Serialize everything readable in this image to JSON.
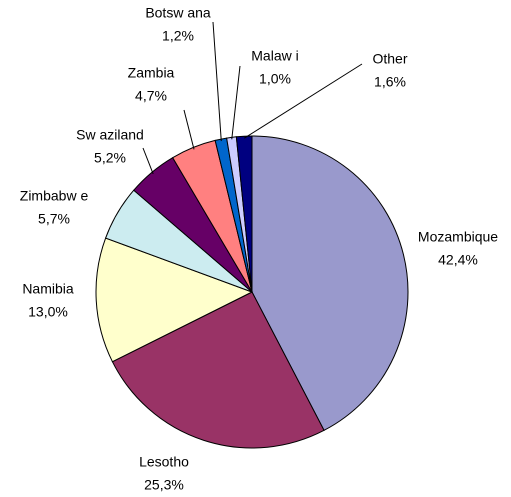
{
  "chart_data": {
    "type": "pie",
    "categories": [
      "Mozambique",
      "Lesotho",
      "Namibia",
      "Zimbabw e",
      "Sw aziland",
      "Zambia",
      "Botsw ana",
      "Malaw i",
      "Other"
    ],
    "values": [
      42.4,
      25.3,
      13.0,
      5.7,
      5.2,
      4.7,
      1.2,
      1.0,
      1.6
    ],
    "value_labels": [
      "42,4%",
      "25,3%",
      "13,0%",
      "5,7%",
      "5,2%",
      "4,7%",
      "1,2%",
      "1,0%",
      "1,6%"
    ],
    "colors": [
      "#9999cc",
      "#993366",
      "#ffffcc",
      "#ccecf0",
      "#660066",
      "#ff8080",
      "#0066cc",
      "#ccccff",
      "#000080"
    ]
  }
}
